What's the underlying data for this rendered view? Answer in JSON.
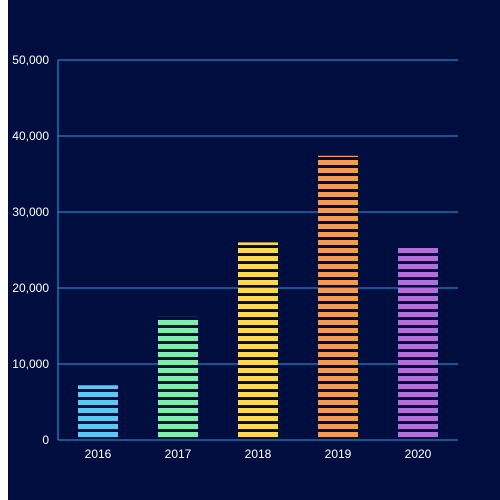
{
  "chart_data": {
    "type": "bar",
    "title": "",
    "xlabel": "",
    "ylabel": "",
    "categories": [
      "2016",
      "2017",
      "2018",
      "2019",
      "2020"
    ],
    "values": [
      7200,
      16200,
      26000,
      37400,
      25500
    ],
    "bar_colors": [
      "#5bc8f5",
      "#7df0b0",
      "#ffd84d",
      "#f59a50",
      "#b16fdc"
    ],
    "ylim": [
      0,
      50000
    ],
    "yticks": [
      0,
      10000,
      20000,
      30000,
      40000,
      50000
    ],
    "ytick_labels": [
      "0",
      "10,000",
      "20,000",
      "30,000",
      "40,000",
      "50,000"
    ],
    "grid": true,
    "grid_color": "#2aa0e8",
    "background_color": "#000d3f",
    "bar_style": "striped"
  }
}
